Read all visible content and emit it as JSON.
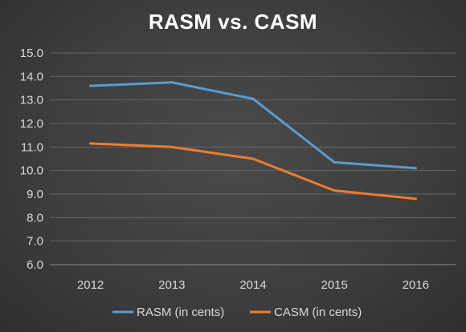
{
  "chart_data": {
    "type": "line",
    "title": "RASM vs. CASM",
    "categories": [
      "2012",
      "2013",
      "2014",
      "2015",
      "2016"
    ],
    "series": [
      {
        "name": "RASM (in cents)",
        "color": "#5b9bd5",
        "values": [
          13.6,
          13.75,
          13.05,
          10.35,
          10.1
        ]
      },
      {
        "name": "CASM (in cents)",
        "color": "#ed7d31",
        "values": [
          11.15,
          11.0,
          10.5,
          9.15,
          8.8
        ]
      }
    ],
    "ylim": [
      6.0,
      15.0
    ],
    "ytick_step": 1.0,
    "ytick_labels": [
      "6.0",
      "7.0",
      "8.0",
      "9.0",
      "10.0",
      "11.0",
      "12.0",
      "13.0",
      "14.0",
      "15.0"
    ],
    "grid": true,
    "legend_position": "bottom",
    "xlabel": "",
    "ylabel": ""
  }
}
